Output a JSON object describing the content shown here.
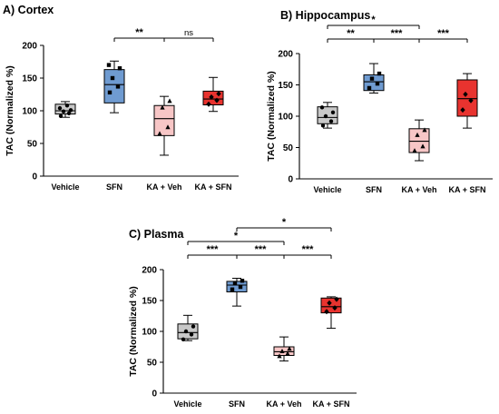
{
  "chart_data": [
    {
      "type": "box",
      "title": "A) Cortex",
      "ylabel": "TAC (Normalized %)",
      "ylim": [
        0,
        200
      ],
      "yticks": [
        0,
        50,
        100,
        150,
        200
      ],
      "categories": [
        "Vehicle",
        "SFN",
        "KA + Veh",
        "KA + SFN"
      ],
      "boxes": [
        {
          "category": "Vehicle",
          "min": 90,
          "q1": 95,
          "median": 100,
          "q3": 110,
          "max": 114,
          "color": "#c8c8c8",
          "marker": "circle",
          "points": [
            92,
            96,
            99,
            101,
            104,
            108
          ]
        },
        {
          "category": "SFN",
          "min": 97,
          "q1": 112,
          "median": 140,
          "q3": 163,
          "max": 176,
          "color": "#6f9bd1",
          "marker": "square",
          "points": [
            128,
            137,
            150,
            165,
            170
          ]
        },
        {
          "category": "KA + Veh",
          "min": 32,
          "q1": 62,
          "median": 88,
          "q3": 108,
          "max": 122,
          "color": "#f7c6c6",
          "marker": "triangle",
          "points": [
            65,
            75,
            105,
            115
          ]
        },
        {
          "category": "KA + SFN",
          "min": 99,
          "q1": 109,
          "median": 118,
          "q3": 130,
          "max": 151,
          "color": "#e8332f",
          "marker": "diamond",
          "points": [
            110,
            116,
            121,
            126
          ]
        }
      ],
      "annotations": [
        {
          "from": "SFN",
          "to": "KA + Veh",
          "label": "**"
        },
        {
          "from": "KA + Veh",
          "to": "KA + SFN",
          "label": "ns"
        }
      ]
    },
    {
      "type": "box",
      "title": "B) Hippocampus",
      "ylabel": "TAC (Normalized %)",
      "ylim": [
        0,
        200
      ],
      "yticks": [
        0,
        50,
        100,
        150,
        200
      ],
      "categories": [
        "Vehicle",
        "SFN",
        "KA + Veh",
        "KA + SFN"
      ],
      "boxes": [
        {
          "category": "Vehicle",
          "min": 81,
          "q1": 88,
          "median": 98,
          "q3": 115,
          "max": 122,
          "color": "#c8c8c8",
          "marker": "circle",
          "points": [
            85,
            92,
            100,
            106,
            114
          ]
        },
        {
          "category": "SFN",
          "min": 137,
          "q1": 141,
          "median": 155,
          "q3": 166,
          "max": 184,
          "color": "#6f9bd1",
          "marker": "square",
          "points": [
            145,
            152,
            160,
            168
          ]
        },
        {
          "category": "KA + Veh",
          "min": 29,
          "q1": 42,
          "median": 60,
          "q3": 80,
          "max": 94,
          "color": "#f7c6c6",
          "marker": "triangle",
          "points": [
            45,
            52,
            70,
            78
          ]
        },
        {
          "category": "KA + SFN",
          "min": 81,
          "q1": 100,
          "median": 128,
          "q3": 158,
          "max": 168,
          "color": "#e8332f",
          "marker": "diamond",
          "points": [
            110,
            125,
            135
          ]
        }
      ],
      "annotations": [
        {
          "from": "Vehicle",
          "to": "KA + Veh",
          "label": "*"
        },
        {
          "from": "Vehicle",
          "to": "SFN",
          "label": "**"
        },
        {
          "from": "SFN",
          "to": "KA + Veh",
          "label": "***"
        },
        {
          "from": "KA + Veh",
          "to": "KA + SFN",
          "label": "***"
        }
      ]
    },
    {
      "type": "box",
      "title": "C) Plasma",
      "ylabel": "TAC (Normalized %)",
      "ylim": [
        0,
        200
      ],
      "yticks": [
        0,
        50,
        100,
        150,
        200
      ],
      "categories": [
        "Vehicle",
        "SFN",
        "KA + Veh",
        "KA + SFN"
      ],
      "boxes": [
        {
          "category": "Vehicle",
          "min": 85,
          "q1": 88,
          "median": 98,
          "q3": 112,
          "max": 126,
          "color": "#c8c8c8",
          "marker": "circle",
          "points": [
            87,
            95,
            100,
            108
          ]
        },
        {
          "category": "SFN",
          "min": 141,
          "q1": 164,
          "median": 175,
          "q3": 181,
          "max": 186,
          "color": "#6f9bd1",
          "marker": "square",
          "points": [
            168,
            172,
            178,
            182
          ]
        },
        {
          "category": "KA + Veh",
          "min": 52,
          "q1": 61,
          "median": 67,
          "q3": 75,
          "max": 91,
          "color": "#f7c6c6",
          "marker": "triangle",
          "points": [
            60,
            64,
            68,
            72
          ]
        },
        {
          "category": "KA + SFN",
          "min": 105,
          "q1": 130,
          "median": 140,
          "q3": 154,
          "max": 156,
          "color": "#e8332f",
          "marker": "diamond",
          "points": [
            132,
            138,
            146,
            152
          ]
        }
      ],
      "annotations": [
        {
          "from": "SFN",
          "to": "KA + SFN",
          "label": "*"
        },
        {
          "from": "Vehicle",
          "to": "KA + Veh",
          "label": "*"
        },
        {
          "from": "Vehicle",
          "to": "SFN",
          "label": "***"
        },
        {
          "from": "SFN",
          "to": "KA + Veh",
          "label": "***"
        },
        {
          "from": "KA + Veh",
          "to": "KA + SFN",
          "label": "***"
        }
      ]
    }
  ]
}
